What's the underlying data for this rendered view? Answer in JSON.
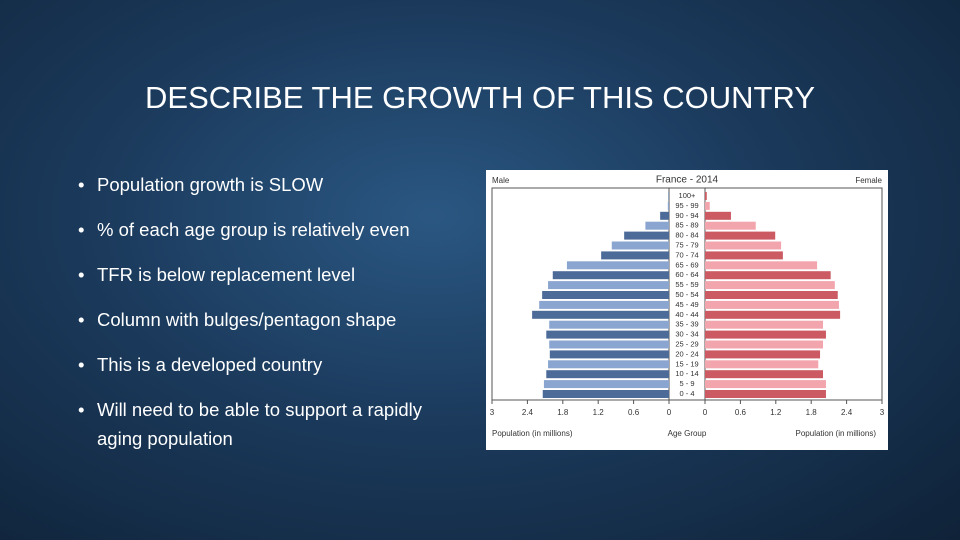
{
  "title": "DESCRIBE THE GROWTH OF THIS COUNTRY",
  "bullets": [
    "Population growth is SLOW",
    "% of each age group is relatively even",
    "TFR is below replacement level",
    "Column with bulges/pentagon shape",
    "This is a developed country",
    "Will need to be able to support a rapidly aging population"
  ],
  "chart_data": {
    "type": "pyramid",
    "title": "France - 2014",
    "categories": [
      "0 - 4",
      "5 - 9",
      "10 - 14",
      "15 - 19",
      "20 - 24",
      "25 - 29",
      "30 - 34",
      "35 - 39",
      "40 - 44",
      "45 - 49",
      "50 - 54",
      "55 - 59",
      "60 - 64",
      "65 - 69",
      "70 - 74",
      "75 - 79",
      "80 - 84",
      "85 - 89",
      "90 - 94",
      "95 - 99",
      "100+"
    ],
    "series": [
      {
        "name": "Male",
        "colors": [
          "#4c6b98",
          "#8aa5cf"
        ],
        "values": [
          2.14,
          2.12,
          2.08,
          2.05,
          2.02,
          2.03,
          2.08,
          2.03,
          2.32,
          2.2,
          2.15,
          2.05,
          1.97,
          1.73,
          1.15,
          0.97,
          0.76,
          0.4,
          0.15,
          0.02,
          0.01
        ]
      },
      {
        "name": "Female",
        "colors": [
          "#cc5a63",
          "#f2a5ad"
        ],
        "values": [
          2.05,
          2.05,
          2.0,
          1.92,
          1.95,
          2.0,
          2.05,
          2.0,
          2.29,
          2.27,
          2.25,
          2.2,
          2.13,
          1.9,
          1.32,
          1.29,
          1.19,
          0.86,
          0.44,
          0.08,
          0.03
        ]
      }
    ],
    "xlabel": "Population (in millions)",
    "category_label": "Age Group",
    "xlim": [
      0,
      3
    ],
    "xticks": [
      0,
      0.6,
      1.2,
      1.8,
      2.4,
      3
    ]
  }
}
